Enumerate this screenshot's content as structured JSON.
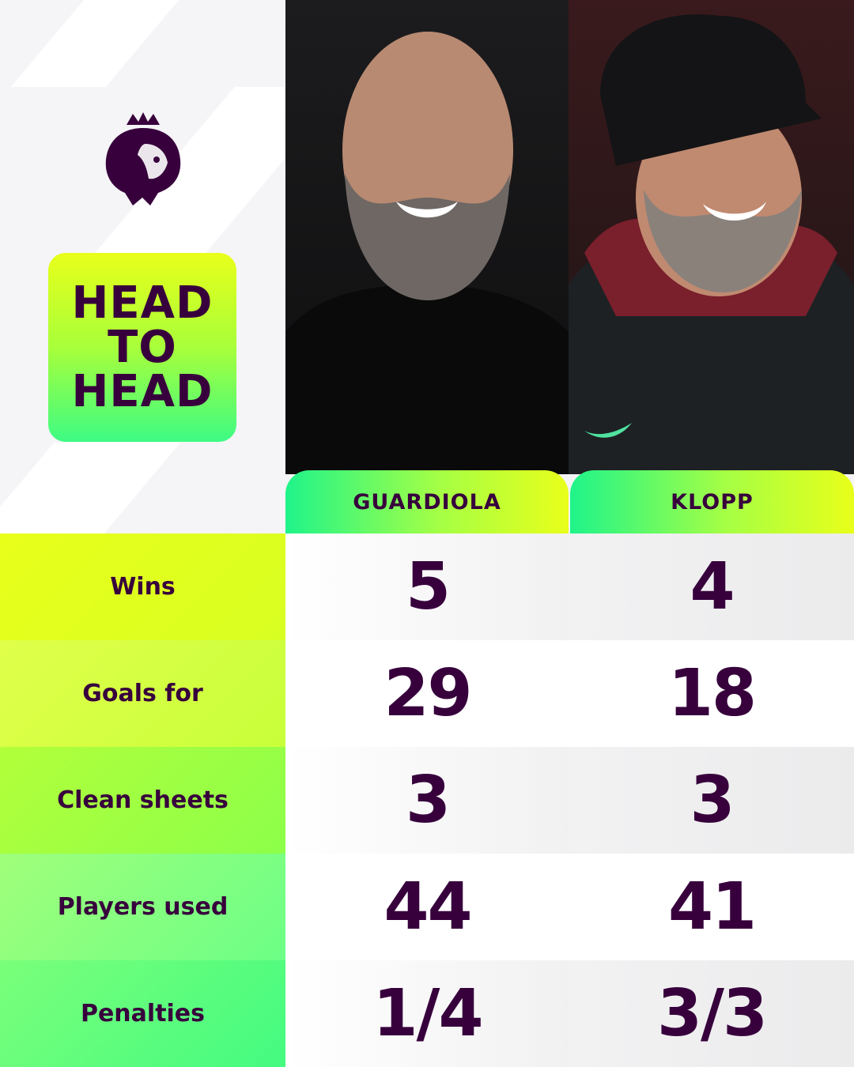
{
  "header": {
    "badge_lines": [
      "HEAD",
      "TO",
      "HEAD"
    ]
  },
  "managers": [
    {
      "name": "GUARDIOLA"
    },
    {
      "name": "KLOPP"
    }
  ],
  "stats": [
    {
      "label": "Wins",
      "values": [
        "5",
        "4"
      ]
    },
    {
      "label": "Goals for",
      "values": [
        "29",
        "18"
      ]
    },
    {
      "label": "Clean sheets",
      "values": [
        "3",
        "3"
      ]
    },
    {
      "label": "Players used",
      "values": [
        "44",
        "41"
      ]
    },
    {
      "label": "Penalties",
      "values": [
        "1/4",
        "3/3"
      ]
    }
  ],
  "colors": {
    "brand_purple": "#37003c",
    "yellow": "#e8ff1a",
    "green": "#3dfb84"
  }
}
